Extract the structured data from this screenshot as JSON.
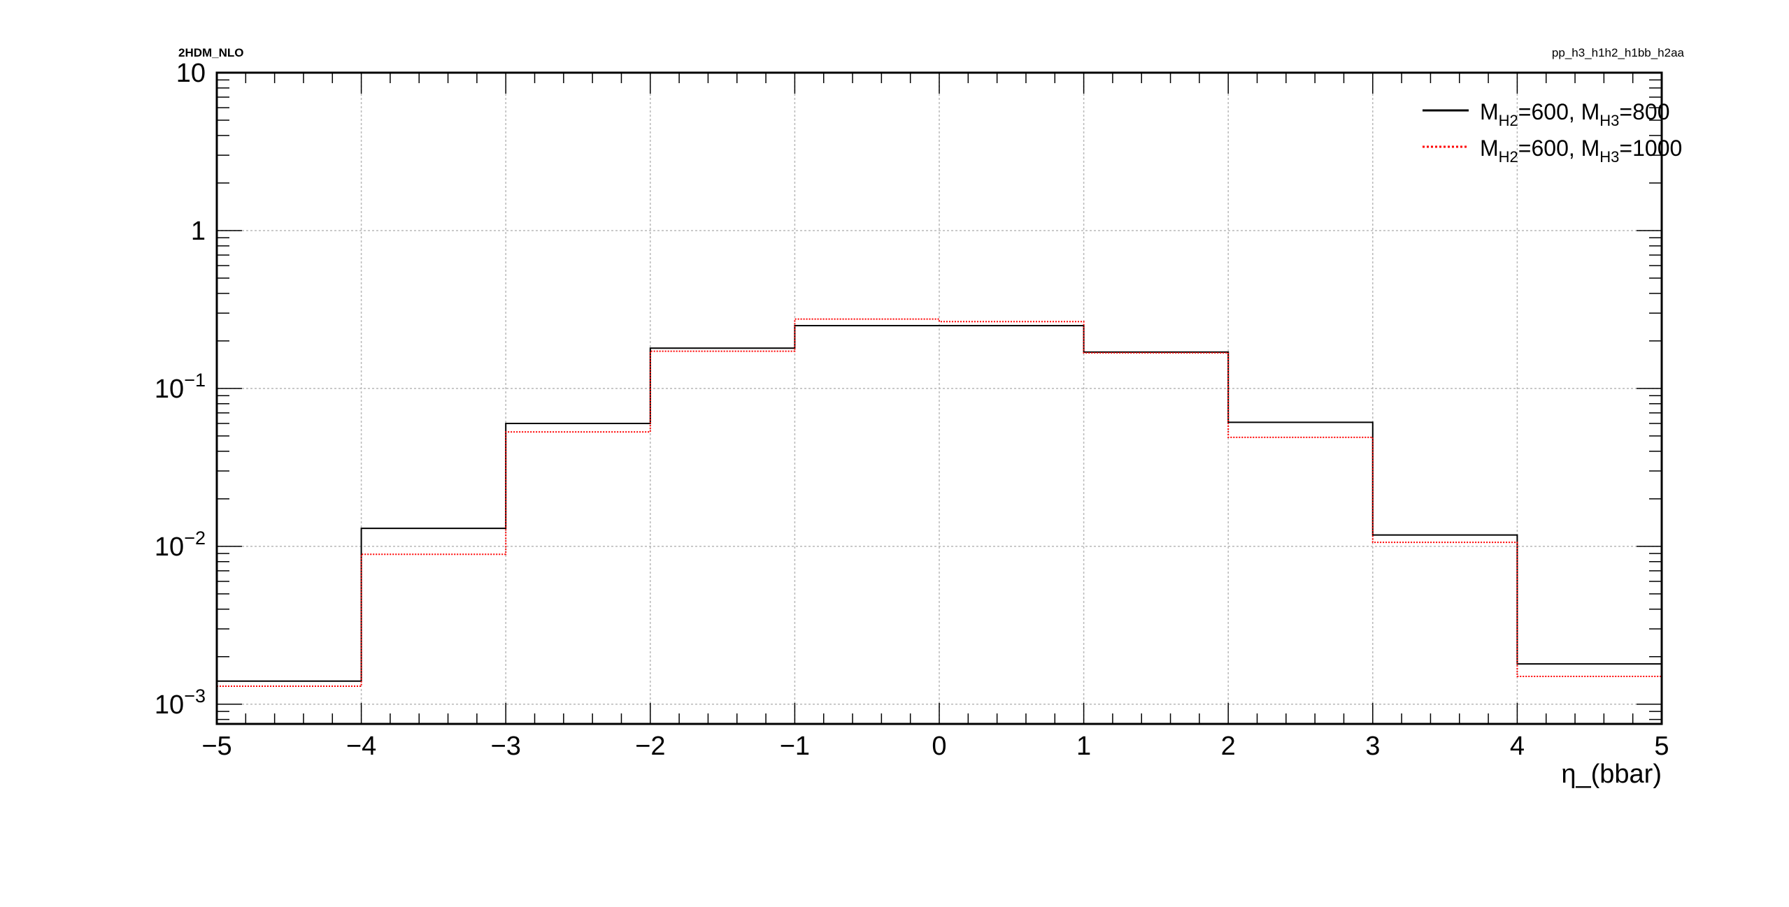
{
  "header": {
    "left_label": "2HDM_NLO",
    "right_label": "pp_h3_h1h2_h1bb_h2aa"
  },
  "chart_data": {
    "type": "line",
    "title": "",
    "xlabel": "η_(bbar)",
    "ylabel": "",
    "xlim": [
      -5,
      5
    ],
    "ylim": [
      0.00075,
      10
    ],
    "yscale": "log",
    "grid": true,
    "legend_position": "top-right",
    "x_tick_labels": [
      "−5",
      "−4",
      "−3",
      "−2",
      "−1",
      "0",
      "1",
      "2",
      "3",
      "4",
      "5"
    ],
    "y_tick_labels": [
      {
        "value": 0.001,
        "base": "10",
        "exp": "−3"
      },
      {
        "value": 0.01,
        "base": "10",
        "exp": "−2"
      },
      {
        "value": 0.1,
        "base": "10",
        "exp": "−1"
      },
      {
        "value": 1,
        "base": "1",
        "exp": ""
      },
      {
        "value": 10,
        "base": "10",
        "exp": ""
      }
    ],
    "bin_edges": [
      -5,
      -4,
      -3,
      -2,
      -1,
      0,
      1,
      2,
      3,
      4,
      5
    ],
    "series": [
      {
        "legend": {
          "m": "M",
          "s1": "H2",
          "mid": "=600, M",
          "s2": "H3",
          "end": "=800"
        },
        "color": "#000000",
        "style": "solid",
        "values": [
          0.0014,
          0.013,
          0.06,
          0.18,
          0.25,
          0.25,
          0.17,
          0.061,
          0.0118,
          0.0018
        ]
      },
      {
        "legend": {
          "m": "M",
          "s1": "H2",
          "mid": "=600, M",
          "s2": "H3",
          "end": "=1000"
        },
        "color": "#ff0000",
        "style": "dotted",
        "values": [
          0.0013,
          0.0089,
          0.053,
          0.172,
          0.275,
          0.265,
          0.168,
          0.049,
          0.0106,
          0.0015
        ]
      }
    ]
  }
}
